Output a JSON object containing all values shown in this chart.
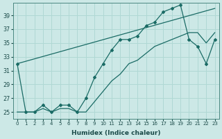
{
  "xlabel": "Humidex (Indice chaleur)",
  "xlim": [
    -0.5,
    23.5
  ],
  "ylim": [
    24.0,
    40.8
  ],
  "yticks": [
    25,
    27,
    29,
    31,
    33,
    35,
    37,
    39
  ],
  "xticks": [
    0,
    1,
    2,
    3,
    4,
    5,
    6,
    7,
    8,
    9,
    10,
    11,
    12,
    13,
    14,
    15,
    16,
    17,
    18,
    19,
    20,
    21,
    22,
    23
  ],
  "background_color": "#cce8e6",
  "grid_color": "#b0d8d4",
  "line_color": "#1a6b65",
  "curve1_x": [
    0,
    1,
    2,
    3,
    4,
    5,
    6,
    7,
    8,
    9,
    10,
    11,
    12,
    13,
    14,
    15,
    16,
    17,
    18,
    19,
    20,
    21,
    22,
    23
  ],
  "curve1_y": [
    32,
    25,
    25,
    26,
    25,
    26,
    26,
    25,
    27,
    30,
    32,
    34,
    35.5,
    35.5,
    36,
    37.5,
    38,
    39.5,
    40,
    40.5,
    35.5,
    34.5,
    32,
    35.5
  ],
  "curve2_x": [
    0,
    23
  ],
  "curve2_y": [
    32,
    40
  ],
  "curve3_x": [
    0,
    1,
    2,
    3,
    4,
    5,
    6,
    7,
    8,
    9,
    10,
    11,
    12,
    13,
    14,
    15,
    16,
    17,
    18,
    19,
    20,
    21,
    22,
    23
  ],
  "curve3_y": [
    25,
    25,
    25,
    25.5,
    25,
    25.5,
    25.5,
    25,
    25,
    26.5,
    28,
    29.5,
    30.5,
    32,
    32.5,
    33.5,
    34.5,
    35,
    35.5,
    36,
    36.5,
    36.5,
    35,
    36.5
  ]
}
